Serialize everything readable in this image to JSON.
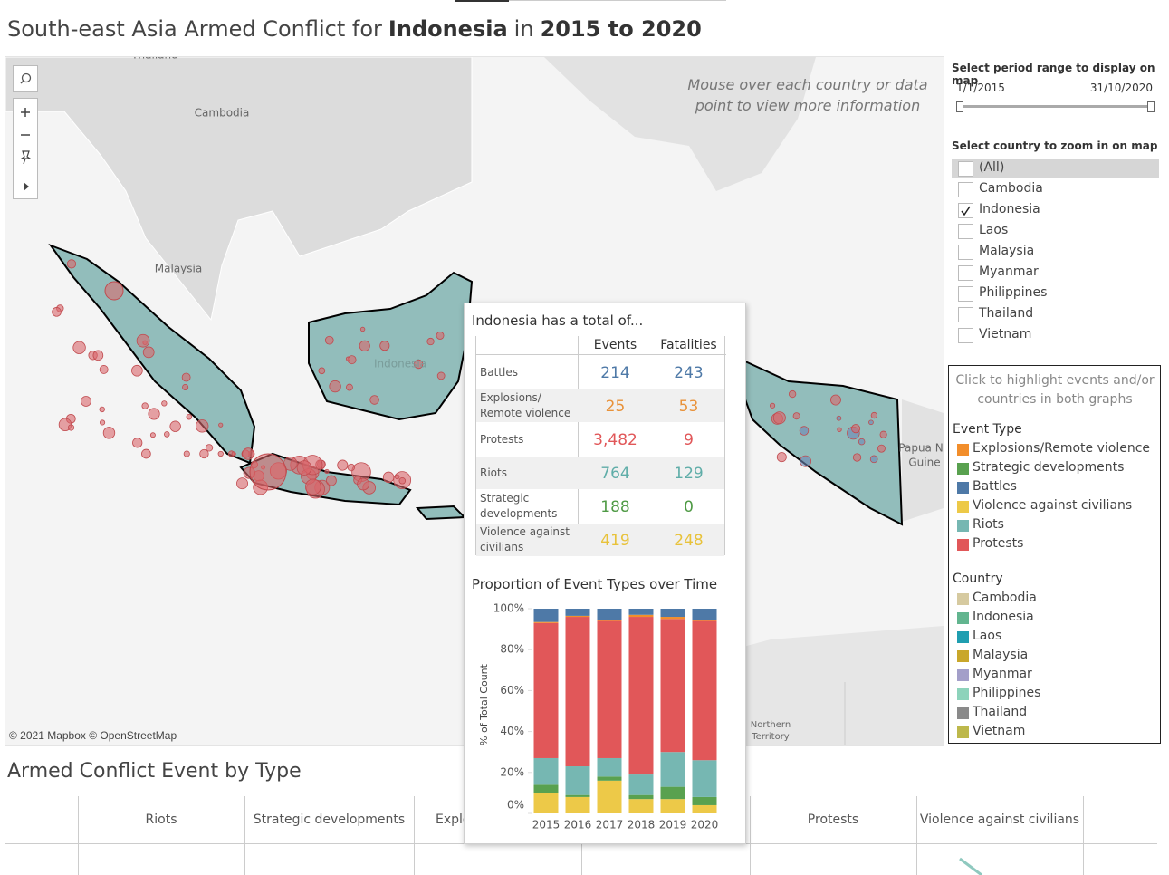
{
  "title": [
    {
      "text": "South-east Asia Armed Conflict for",
      "bold": false
    },
    {
      "text": "Indonesia",
      "bold": true
    },
    {
      "text": "in",
      "bold": false
    },
    {
      "text": "2015 to 2020",
      "bold": true
    }
  ],
  "map": {
    "hint": "Mouse over each country or data point to view more information",
    "attribution": "© 2021 Mapbox © OpenStreetMap",
    "labels": [
      "Thailand",
      "Cambodia",
      "Malaysia",
      "Indonesia",
      "Papua N",
      "Guine",
      "Northern",
      "Territory"
    ]
  },
  "period_filter": {
    "title": "Select period range to display on map",
    "start": "1/1/2015",
    "end": "31/10/2020"
  },
  "country_filter": {
    "title": "Select country to zoom in on map",
    "options": [
      {
        "label": "(All)",
        "checked": false
      },
      {
        "label": "Cambodia",
        "checked": false
      },
      {
        "label": "Indonesia",
        "checked": true
      },
      {
        "label": "Laos",
        "checked": false
      },
      {
        "label": "Malaysia",
        "checked": false
      },
      {
        "label": "Myanmar",
        "checked": false
      },
      {
        "label": "Philippines",
        "checked": false
      },
      {
        "label": "Thailand",
        "checked": false
      },
      {
        "label": "Vietnam",
        "checked": false
      }
    ]
  },
  "legend": {
    "hint": "Click to highlight events and/or countries in both graphs",
    "event_type": {
      "title": "Event Type",
      "items": [
        {
          "name": "Explosions/Remote violence",
          "color": "#f28e2b"
        },
        {
          "name": "Strategic developments",
          "color": "#59a14f"
        },
        {
          "name": "Battles",
          "color": "#4e79a7"
        },
        {
          "name": "Violence against civilians",
          "color": "#edc948"
        },
        {
          "name": "Riots",
          "color": "#76b7b2"
        },
        {
          "name": "Protests",
          "color": "#e15759"
        }
      ]
    },
    "country": {
      "title": "Country",
      "items": [
        {
          "name": "Cambodia",
          "color": "#d6caa0"
        },
        {
          "name": "Indonesia",
          "color": "#62b58f"
        },
        {
          "name": "Laos",
          "color": "#1f9eb0"
        },
        {
          "name": "Malaysia",
          "color": "#c9a72a"
        },
        {
          "name": "Myanmar",
          "color": "#a39fc9"
        },
        {
          "name": "Philippines",
          "color": "#8dd3bb"
        },
        {
          "name": "Thailand",
          "color": "#8a8a8a"
        },
        {
          "name": "Vietnam",
          "color": "#bdb84b"
        }
      ]
    }
  },
  "tooltip": {
    "heading": "Indonesia has a total of...",
    "columns": [
      "Events",
      "Fatalities"
    ],
    "rows": [
      {
        "label": "Battles",
        "color": "#4e79a7",
        "events": "214",
        "fatalities": "243"
      },
      {
        "label": "Explosions/ Remote violence",
        "color": "#e8923a",
        "events": "25",
        "fatalities": "53"
      },
      {
        "label": "Protests",
        "color": "#e15759",
        "events": "3,482",
        "fatalities": "9"
      },
      {
        "label": "Riots",
        "color": "#5fada8",
        "events": "764",
        "fatalities": "129"
      },
      {
        "label": "Strategic developments",
        "color": "#4f9a45",
        "events": "188",
        "fatalities": "0"
      },
      {
        "label": "Violence against civilians",
        "color": "#e8c23a",
        "events": "419",
        "fatalities": "248"
      }
    ]
  },
  "chart_data": {
    "type": "stacked_bar",
    "title": "Proportion of Event Types over Time",
    "y_label": "% of Total Count",
    "categories": [
      "2015",
      "2016",
      "2017",
      "2018",
      "2019",
      "2020"
    ],
    "series": [
      {
        "name": "Violence against civilians",
        "color": "#edc948",
        "values": [
          10,
          8,
          16,
          7,
          7,
          4
        ]
      },
      {
        "name": "Strategic developments",
        "color": "#59a14f",
        "values": [
          4,
          1,
          2,
          2,
          6,
          4
        ]
      },
      {
        "name": "Riots",
        "color": "#76b7b2",
        "values": [
          13,
          14,
          9,
          10,
          17,
          18
        ]
      },
      {
        "name": "Protests",
        "color": "#e15759",
        "values": [
          66,
          73,
          67,
          77,
          65,
          68
        ]
      },
      {
        "name": "Explosions/Remote violence",
        "color": "#f28e2b",
        "values": [
          0.5,
          0.5,
          0.5,
          1,
          1,
          0.5
        ]
      },
      {
        "name": "Battles",
        "color": "#4e79a7",
        "values": [
          6.5,
          3.5,
          5.5,
          3,
          4,
          5.5
        ]
      }
    ],
    "ylim": [
      0,
      100
    ],
    "yticks": [
      {
        "value": 0,
        "label": "0%"
      },
      {
        "value": 20,
        "label": "20%"
      },
      {
        "value": 40,
        "label": "40%"
      },
      {
        "value": 60,
        "label": "60%"
      },
      {
        "value": 80,
        "label": "80%"
      },
      {
        "value": 100,
        "label": "100%"
      }
    ]
  },
  "bottom": {
    "title": "Armed Conflict Event by Type",
    "columns": [
      "Riots",
      "Strategic developments",
      "Explosions/Remote violence",
      "Protests",
      "Violence against civilians"
    ]
  }
}
